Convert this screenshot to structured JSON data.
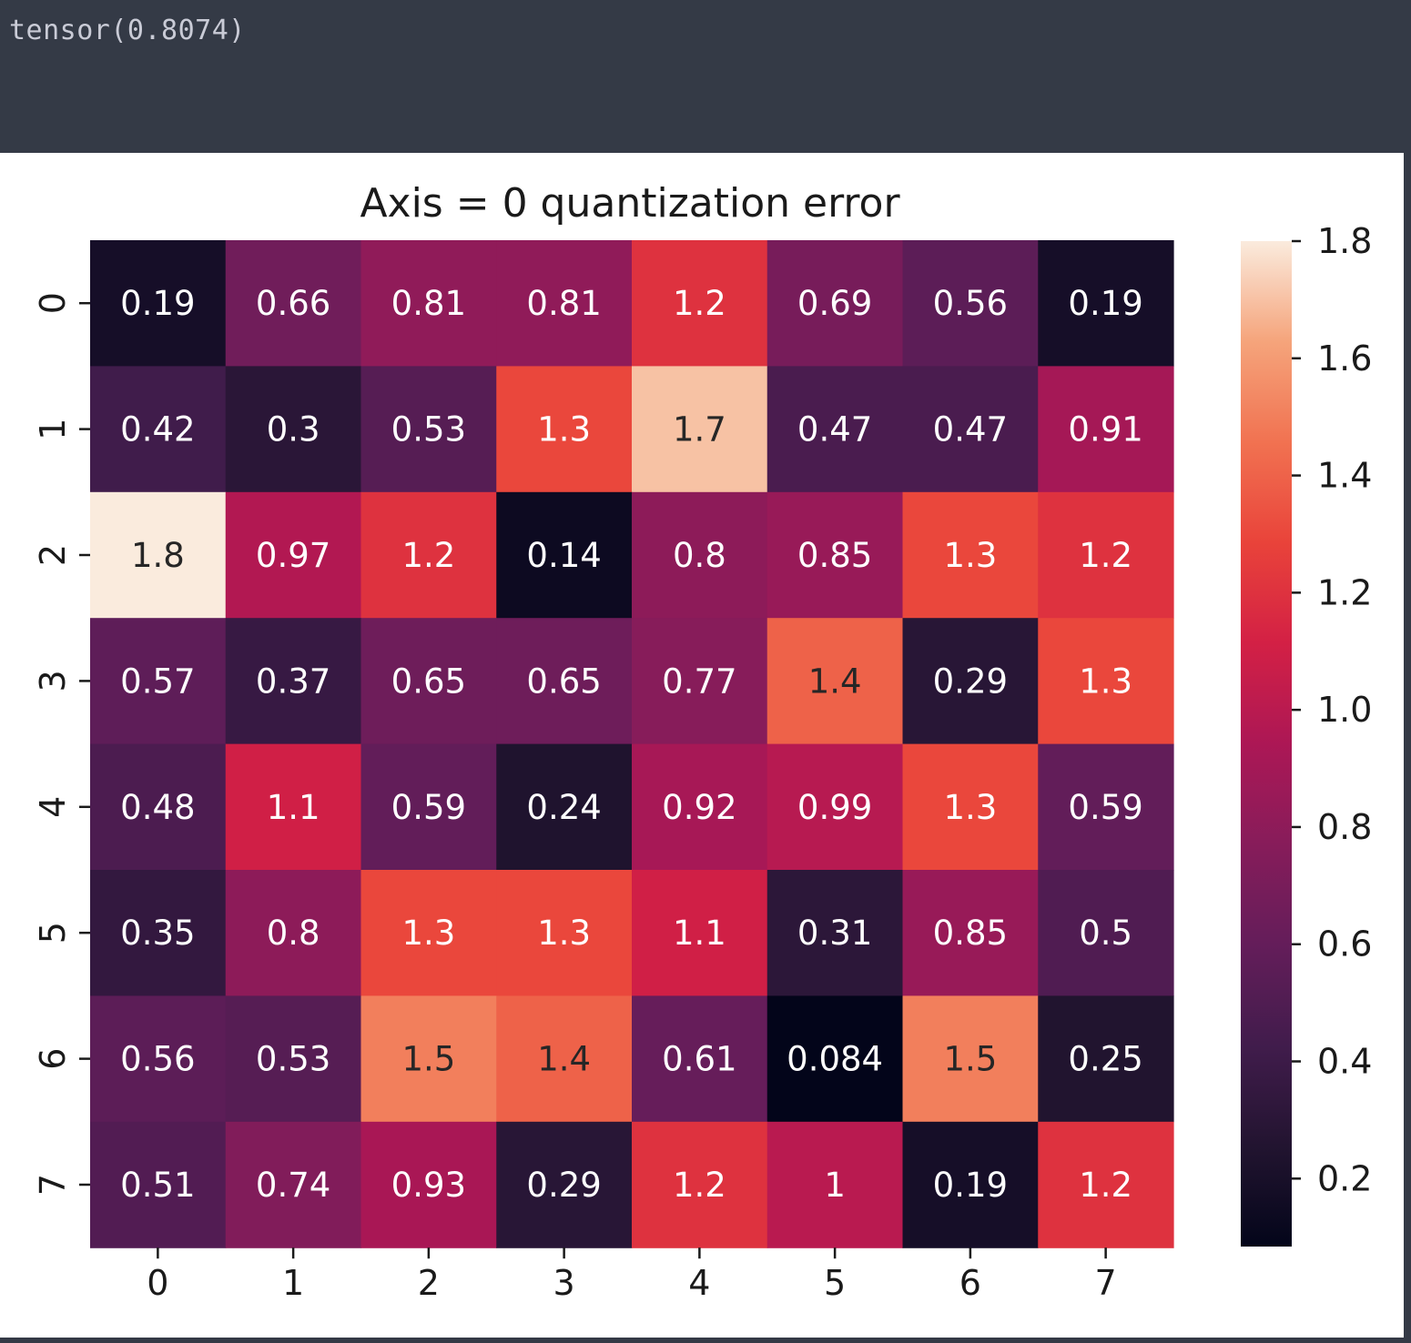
{
  "output": {
    "text": "tensor(0.8074)"
  },
  "chart_data": {
    "type": "heatmap",
    "title": "Axis = 0 quantization error",
    "xlabel": "",
    "ylabel": "",
    "x_ticks": [
      "0",
      "1",
      "2",
      "3",
      "4",
      "5",
      "6",
      "7"
    ],
    "y_ticks": [
      "0",
      "1",
      "2",
      "3",
      "4",
      "5",
      "6",
      "7"
    ],
    "values": [
      [
        0.19,
        0.66,
        0.81,
        0.81,
        1.2,
        0.69,
        0.56,
        0.19
      ],
      [
        0.42,
        0.3,
        0.53,
        1.3,
        1.7,
        0.47,
        0.47,
        0.91
      ],
      [
        1.8,
        0.97,
        1.2,
        0.14,
        0.8,
        0.85,
        1.3,
        1.2
      ],
      [
        0.57,
        0.37,
        0.65,
        0.65,
        0.77,
        1.4,
        0.29,
        1.3
      ],
      [
        0.48,
        1.1,
        0.59,
        0.24,
        0.92,
        0.99,
        1.3,
        0.59
      ],
      [
        0.35,
        0.8,
        1.3,
        1.3,
        1.1,
        0.31,
        0.85,
        0.5
      ],
      [
        0.56,
        0.53,
        1.5,
        1.4,
        0.61,
        0.084,
        1.5,
        0.25
      ],
      [
        0.51,
        0.74,
        0.93,
        0.29,
        1.2,
        1,
        0.19,
        1.2
      ]
    ],
    "labels": [
      [
        "0.19",
        "0.66",
        "0.81",
        "0.81",
        "1.2",
        "0.69",
        "0.56",
        "0.19"
      ],
      [
        "0.42",
        "0.3",
        "0.53",
        "1.3",
        "1.7",
        "0.47",
        "0.47",
        "0.91"
      ],
      [
        "1.8",
        "0.97",
        "1.2",
        "0.14",
        "0.8",
        "0.85",
        "1.3",
        "1.2"
      ],
      [
        "0.57",
        "0.37",
        "0.65",
        "0.65",
        "0.77",
        "1.4",
        "0.29",
        "1.3"
      ],
      [
        "0.48",
        "1.1",
        "0.59",
        "0.24",
        "0.92",
        "0.99",
        "1.3",
        "0.59"
      ],
      [
        "0.35",
        "0.8",
        "1.3",
        "1.3",
        "1.1",
        "0.31",
        "0.85",
        "0.5"
      ],
      [
        "0.56",
        "0.53",
        "1.5",
        "1.4",
        "0.61",
        "0.084",
        "1.5",
        "0.25"
      ],
      [
        "0.51",
        "0.74",
        "0.93",
        "0.29",
        "1.2",
        "1",
        "0.19",
        "1.2"
      ]
    ],
    "colormap": "rocket",
    "colorbar": {
      "vmin": 0.084,
      "vmax": 1.8,
      "ticks": [
        0.2,
        0.4,
        0.6,
        0.8,
        1.0,
        1.2,
        1.4,
        1.6,
        1.8
      ],
      "tick_labels": [
        "0.2",
        "0.4",
        "0.6",
        "0.8",
        "1.0",
        "1.2",
        "1.4",
        "1.6",
        "1.8"
      ]
    },
    "annotation_dark_text_threshold": 1.35,
    "grid": false,
    "legend": "colorbar right"
  },
  "colors": {
    "notebook_bg": "#343a46",
    "output_text": "#c9cbd6",
    "figure_bg": "#ffffff",
    "axis_text": "#1a1a1a",
    "annotation_light": "#ffffff",
    "annotation_dark": "#262626"
  }
}
